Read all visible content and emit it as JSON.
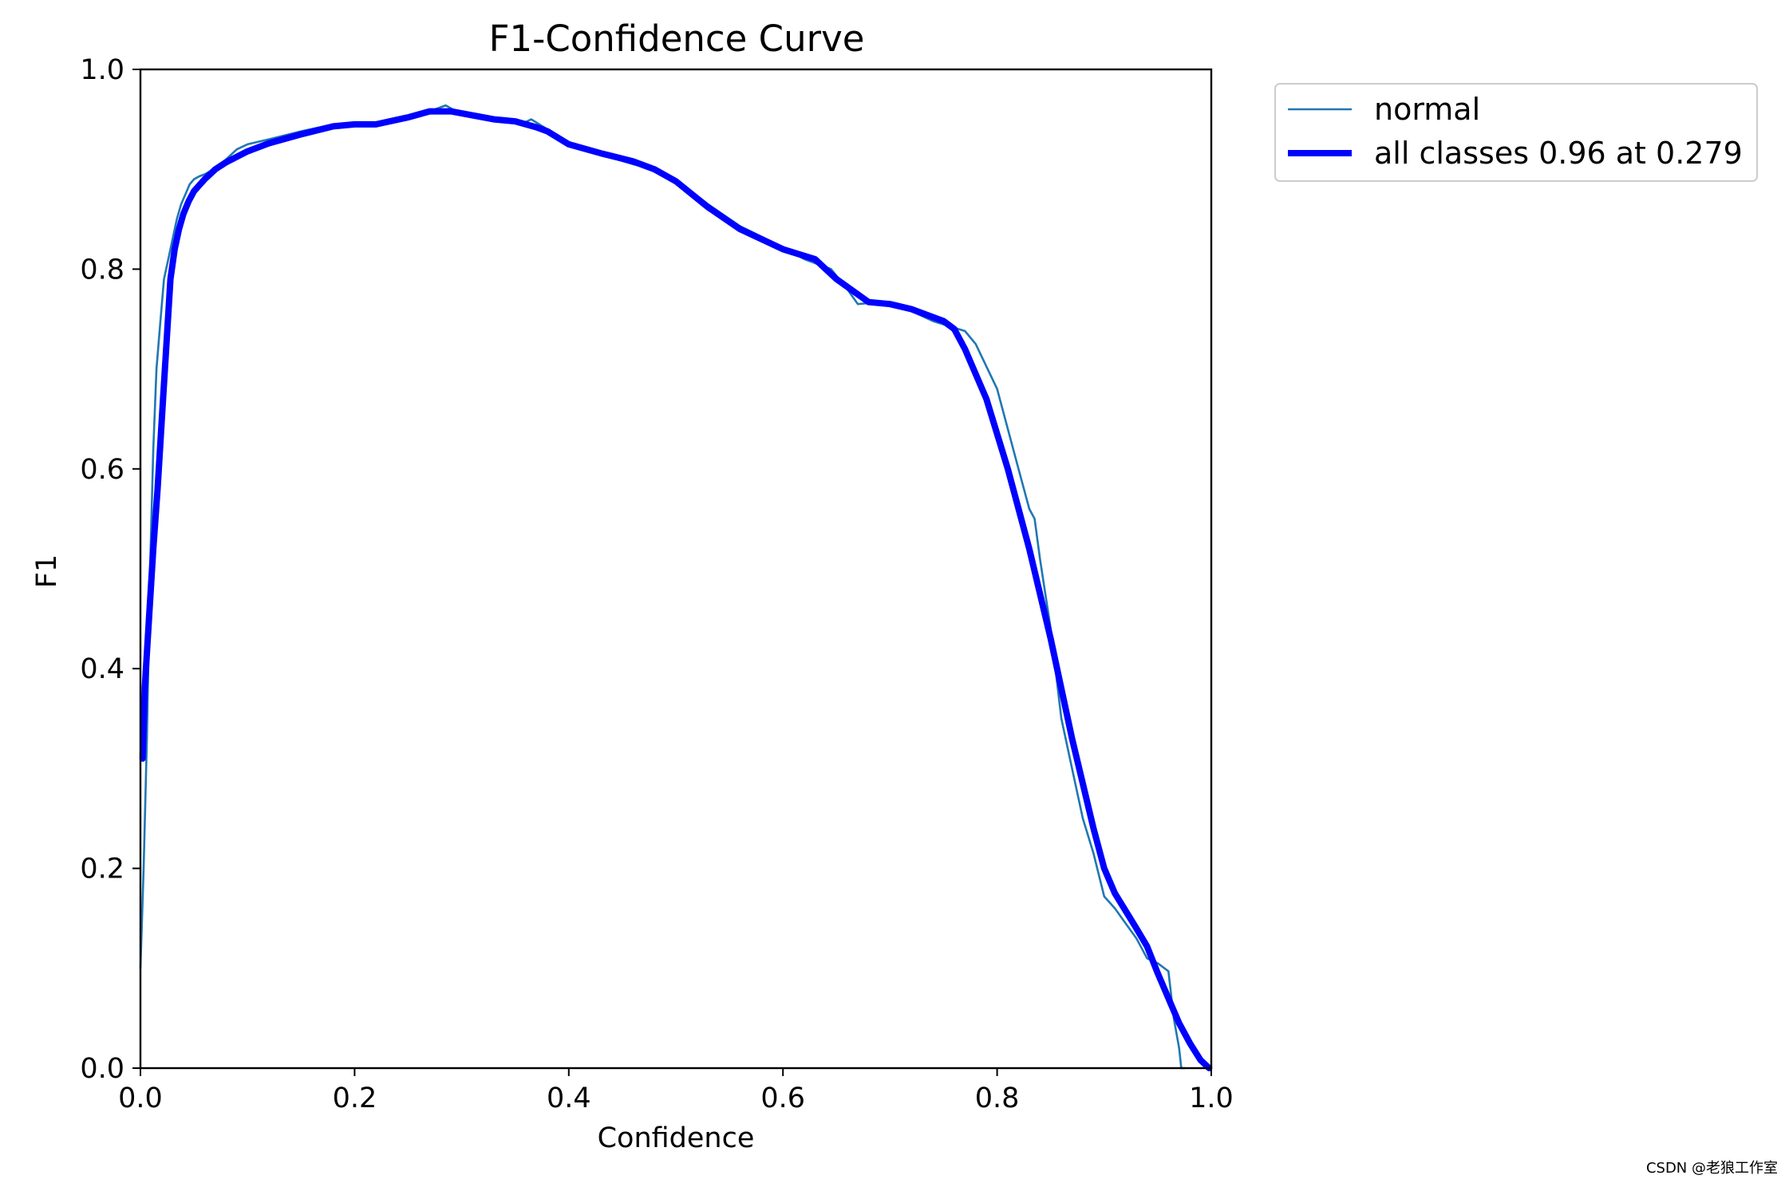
{
  "chart_data": {
    "type": "line",
    "title": "F1-Confidence Curve",
    "xlabel": "Confidence",
    "ylabel": "F1",
    "xlim": [
      0.0,
      1.0
    ],
    "ylim": [
      0.0,
      1.0
    ],
    "xticks": [
      "0.0",
      "0.2",
      "0.4",
      "0.6",
      "0.8",
      "1.0"
    ],
    "yticks": [
      "0.0",
      "0.2",
      "0.4",
      "0.6",
      "0.8",
      "1.0"
    ],
    "grid": false,
    "legend_placement": "outside-top-right",
    "series": [
      {
        "name": "normal",
        "color": "#1f77b4",
        "style": "thin",
        "x": [
          0.0,
          0.003,
          0.006,
          0.009,
          0.012,
          0.015,
          0.018,
          0.022,
          0.026,
          0.03,
          0.034,
          0.038,
          0.042,
          0.046,
          0.05,
          0.055,
          0.06,
          0.065,
          0.07,
          0.08,
          0.09,
          0.1,
          0.12,
          0.15,
          0.18,
          0.2,
          0.22,
          0.25,
          0.27,
          0.285,
          0.295,
          0.31,
          0.315,
          0.33,
          0.35,
          0.355,
          0.365,
          0.38,
          0.4,
          0.43,
          0.46,
          0.48,
          0.5,
          0.53,
          0.56,
          0.6,
          0.62,
          0.645,
          0.66,
          0.67,
          0.68,
          0.7,
          0.72,
          0.74,
          0.77,
          0.78,
          0.8,
          0.82,
          0.83,
          0.835,
          0.84,
          0.85,
          0.86,
          0.87,
          0.88,
          0.89,
          0.9,
          0.91,
          0.92,
          0.93,
          0.94,
          0.95,
          0.96,
          0.965,
          0.97,
          0.972,
          0.975
        ],
        "y": [
          0.1,
          0.2,
          0.33,
          0.5,
          0.62,
          0.7,
          0.74,
          0.79,
          0.81,
          0.83,
          0.85,
          0.865,
          0.875,
          0.885,
          0.89,
          0.893,
          0.895,
          0.898,
          0.9,
          0.91,
          0.92,
          0.925,
          0.93,
          0.938,
          0.945,
          0.946,
          0.946,
          0.952,
          0.958,
          0.964,
          0.958,
          0.956,
          0.952,
          0.95,
          0.948,
          0.945,
          0.95,
          0.94,
          0.926,
          0.915,
          0.905,
          0.9,
          0.89,
          0.865,
          0.843,
          0.822,
          0.81,
          0.8,
          0.78,
          0.765,
          0.766,
          0.765,
          0.758,
          0.748,
          0.738,
          0.725,
          0.68,
          0.6,
          0.56,
          0.55,
          0.51,
          0.44,
          0.35,
          0.3,
          0.25,
          0.215,
          0.172,
          0.16,
          0.145,
          0.13,
          0.11,
          0.105,
          0.097,
          0.05,
          0.02,
          0.0,
          0.0
        ]
      },
      {
        "name": "all classes 0.96 at 0.279",
        "color": "#0000ff",
        "style": "thick",
        "x": [
          0.002,
          0.004,
          0.008,
          0.012,
          0.016,
          0.02,
          0.024,
          0.028,
          0.032,
          0.036,
          0.04,
          0.045,
          0.05,
          0.06,
          0.07,
          0.08,
          0.1,
          0.12,
          0.15,
          0.18,
          0.2,
          0.22,
          0.25,
          0.27,
          0.29,
          0.31,
          0.33,
          0.35,
          0.37,
          0.38,
          0.4,
          0.43,
          0.46,
          0.48,
          0.5,
          0.53,
          0.56,
          0.6,
          0.63,
          0.65,
          0.68,
          0.7,
          0.72,
          0.75,
          0.76,
          0.77,
          0.79,
          0.81,
          0.83,
          0.85,
          0.87,
          0.89,
          0.9,
          0.91,
          0.93,
          0.94,
          0.95,
          0.96,
          0.97,
          0.98,
          0.99,
          0.998
        ],
        "y": [
          0.31,
          0.38,
          0.45,
          0.52,
          0.58,
          0.65,
          0.72,
          0.79,
          0.82,
          0.84,
          0.855,
          0.868,
          0.878,
          0.89,
          0.9,
          0.907,
          0.918,
          0.926,
          0.935,
          0.943,
          0.945,
          0.945,
          0.952,
          0.958,
          0.958,
          0.954,
          0.95,
          0.948,
          0.942,
          0.938,
          0.925,
          0.916,
          0.908,
          0.9,
          0.888,
          0.862,
          0.84,
          0.82,
          0.81,
          0.79,
          0.767,
          0.765,
          0.76,
          0.748,
          0.74,
          0.72,
          0.67,
          0.6,
          0.52,
          0.43,
          0.33,
          0.24,
          0.2,
          0.175,
          0.14,
          0.122,
          0.095,
          0.07,
          0.045,
          0.025,
          0.008,
          0.0
        ]
      }
    ]
  },
  "watermark": "CSDN @老狼工作室"
}
